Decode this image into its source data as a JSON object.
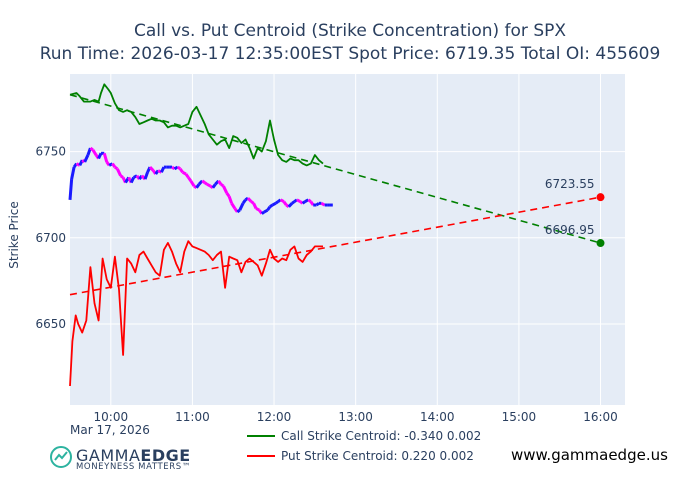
{
  "chart_data": {
    "type": "line",
    "title": "Call vs. Put Centroid (Strike Concentration) for SPX",
    "subtitle_prefix": "Run Time:",
    "run_time": "2026-03-17 12:35:00EST",
    "spot_label": "Spot Price:",
    "spot_price": "6719.35",
    "oi_label": "Total OI:",
    "total_oi": "455609",
    "ylabel": "Strike Price",
    "date_label": "Mar 17, 2026",
    "x_ticks": [
      "10:00",
      "11:00",
      "12:00",
      "13:00",
      "14:00",
      "15:00",
      "16:00"
    ],
    "y_ticks": [
      6650,
      6700,
      6750
    ],
    "x_range_hours": [
      9.5,
      16.3
    ],
    "y_range": [
      6603,
      6795
    ],
    "call_series": {
      "name": "Call Strike Centroid: -0.340 0.002",
      "color": "#008000",
      "x": [
        9.5,
        9.58,
        9.62,
        9.67,
        9.75,
        9.8,
        9.85,
        9.88,
        9.92,
        9.97,
        10.0,
        10.05,
        10.1,
        10.15,
        10.2,
        10.25,
        10.3,
        10.35,
        10.4,
        10.45,
        10.5,
        10.55,
        10.6,
        10.65,
        10.7,
        10.75,
        10.8,
        10.85,
        10.9,
        10.95,
        11.0,
        11.05,
        11.1,
        11.15,
        11.2,
        11.25,
        11.3,
        11.35,
        11.4,
        11.45,
        11.5,
        11.55,
        11.6,
        11.65,
        11.7,
        11.75,
        11.8,
        11.85,
        11.9,
        11.95,
        12.0,
        12.05,
        12.1,
        12.15,
        12.2,
        12.25,
        12.3,
        12.35,
        12.4,
        12.45,
        12.5,
        12.55,
        12.6
      ],
      "values": [
        6783,
        6784,
        6782,
        6779,
        6779,
        6780,
        6779,
        6784,
        6789,
        6786,
        6784,
        6778,
        6774,
        6773,
        6774,
        6773,
        6770,
        6766,
        6767,
        6768,
        6769,
        6768,
        6768,
        6767,
        6764,
        6765,
        6765,
        6764,
        6765,
        6766,
        6773,
        6776,
        6771,
        6766,
        6760,
        6757,
        6754,
        6756,
        6757,
        6752,
        6759,
        6758,
        6755,
        6757,
        6752,
        6746,
        6752,
        6750,
        6756,
        6768,
        6757,
        6748,
        6745,
        6744,
        6746,
        6745,
        6745,
        6743,
        6742,
        6743,
        6748,
        6745,
        6743
      ]
    },
    "put_series": {
      "name": "Put Strike Centroid: 0.220 0.002",
      "color": "#ff0000",
      "x": [
        9.5,
        9.53,
        9.57,
        9.6,
        9.65,
        9.7,
        9.75,
        9.8,
        9.85,
        9.9,
        9.95,
        10.0,
        10.05,
        10.1,
        10.15,
        10.2,
        10.25,
        10.3,
        10.35,
        10.4,
        10.45,
        10.5,
        10.55,
        10.6,
        10.65,
        10.7,
        10.75,
        10.8,
        10.85,
        10.9,
        10.95,
        11.0,
        11.05,
        11.1,
        11.15,
        11.2,
        11.25,
        11.3,
        11.35,
        11.4,
        11.45,
        11.5,
        11.55,
        11.6,
        11.65,
        11.7,
        11.75,
        11.8,
        11.85,
        11.9,
        11.95,
        12.0,
        12.05,
        12.1,
        12.15,
        12.2,
        12.25,
        12.3,
        12.35,
        12.4,
        12.45,
        12.5,
        12.55,
        12.6
      ],
      "values": [
        6614,
        6640,
        6655,
        6650,
        6645,
        6652,
        6683,
        6662,
        6652,
        6688,
        6676,
        6671,
        6689,
        6670,
        6632,
        6688,
        6685,
        6680,
        6690,
        6692,
        6688,
        6684,
        6680,
        6678,
        6693,
        6697,
        6692,
        6685,
        6680,
        6692,
        6698,
        6695,
        6694,
        6693,
        6692,
        6690,
        6687,
        6690,
        6692,
        6671,
        6689,
        6688,
        6687,
        6680,
        6686,
        6688,
        6686,
        6684,
        6678,
        6685,
        6693,
        6688,
        6686,
        6688,
        6687,
        6693,
        6695,
        6688,
        6686,
        6690,
        6692,
        6695,
        6695,
        6695
      ]
    },
    "spot_series": {
      "name": "Spot Price",
      "up_color": "#1a1aff",
      "down_color": "#ff00ff",
      "x": [
        9.5,
        9.52,
        9.55,
        9.58,
        9.62,
        9.65,
        9.68,
        9.72,
        9.75,
        9.78,
        9.82,
        9.85,
        9.88,
        9.92,
        9.95,
        9.98,
        10.02,
        10.05,
        10.08,
        10.12,
        10.15,
        10.18,
        10.22,
        10.25,
        10.28,
        10.32,
        10.35,
        10.38,
        10.42,
        10.45,
        10.48,
        10.52,
        10.55,
        10.58,
        10.62,
        10.65,
        10.68,
        10.72,
        10.75,
        10.78,
        10.82,
        10.85,
        10.88,
        10.92,
        10.95,
        10.98,
        11.02,
        11.05,
        11.08,
        11.12,
        11.15,
        11.18,
        11.22,
        11.25,
        11.28,
        11.32,
        11.35,
        11.38,
        11.42,
        11.45,
        11.48,
        11.52,
        11.55,
        11.58,
        11.62,
        11.65,
        11.68,
        11.72,
        11.75,
        11.78,
        11.82,
        11.85,
        11.88,
        11.92,
        11.95,
        11.98,
        12.02,
        12.05,
        12.08,
        12.12,
        12.15,
        12.18,
        12.22,
        12.25,
        12.28,
        12.32,
        12.35,
        12.38,
        12.42,
        12.45,
        12.48,
        12.52,
        12.55,
        12.58,
        12.62,
        12.65,
        12.68,
        12.72
      ],
      "values": [
        6722,
        6734,
        6741,
        6743,
        6742,
        6745,
        6744,
        6748,
        6752,
        6751,
        6748,
        6746,
        6749,
        6749,
        6744,
        6742,
        6743,
        6741,
        6740,
        6736,
        6735,
        6732,
        6735,
        6732,
        6735,
        6736,
        6734,
        6736,
        6734,
        6738,
        6741,
        6739,
        6737,
        6739,
        6738,
        6741,
        6741,
        6741,
        6741,
        6740,
        6741,
        6740,
        6738,
        6737,
        6735,
        6733,
        6730,
        6729,
        6731,
        6733,
        6732,
        6731,
        6730,
        6729,
        6731,
        6733,
        6731,
        6730,
        6726,
        6724,
        6720,
        6717,
        6715,
        6716,
        6720,
        6722,
        6723,
        6721,
        6720,
        6717,
        6716,
        6714,
        6715,
        6716,
        6718,
        6719,
        6720,
        6721,
        6722,
        6721,
        6719,
        6718,
        6720,
        6721,
        6722,
        6721,
        6720,
        6721,
        6722,
        6721,
        6719,
        6719,
        6720,
        6720,
        6719,
        6719,
        6719,
        6719
      ]
    },
    "call_trend": {
      "x": [
        9.5,
        16.0
      ],
      "values": [
        6783,
        6696.95
      ],
      "color": "#008000"
    },
    "put_trend": {
      "x": [
        9.5,
        16.0
      ],
      "values": [
        6667,
        6723.55
      ],
      "color": "#ff0000"
    },
    "annotations": [
      {
        "label": "6723.55",
        "x": 16.0,
        "value": 6723.55,
        "color": "#ff0000"
      },
      {
        "label": "6696.95",
        "x": 16.0,
        "value": 6696.95,
        "color": "#008000"
      }
    ],
    "legend_position": "bottom-center",
    "grid": true
  },
  "branding": {
    "brand_name_light": "GAMMA",
    "brand_name_bold": "EDGE",
    "tagline": "MONEYNESS MATTERS™",
    "website": "www.gammaedge.us"
  }
}
